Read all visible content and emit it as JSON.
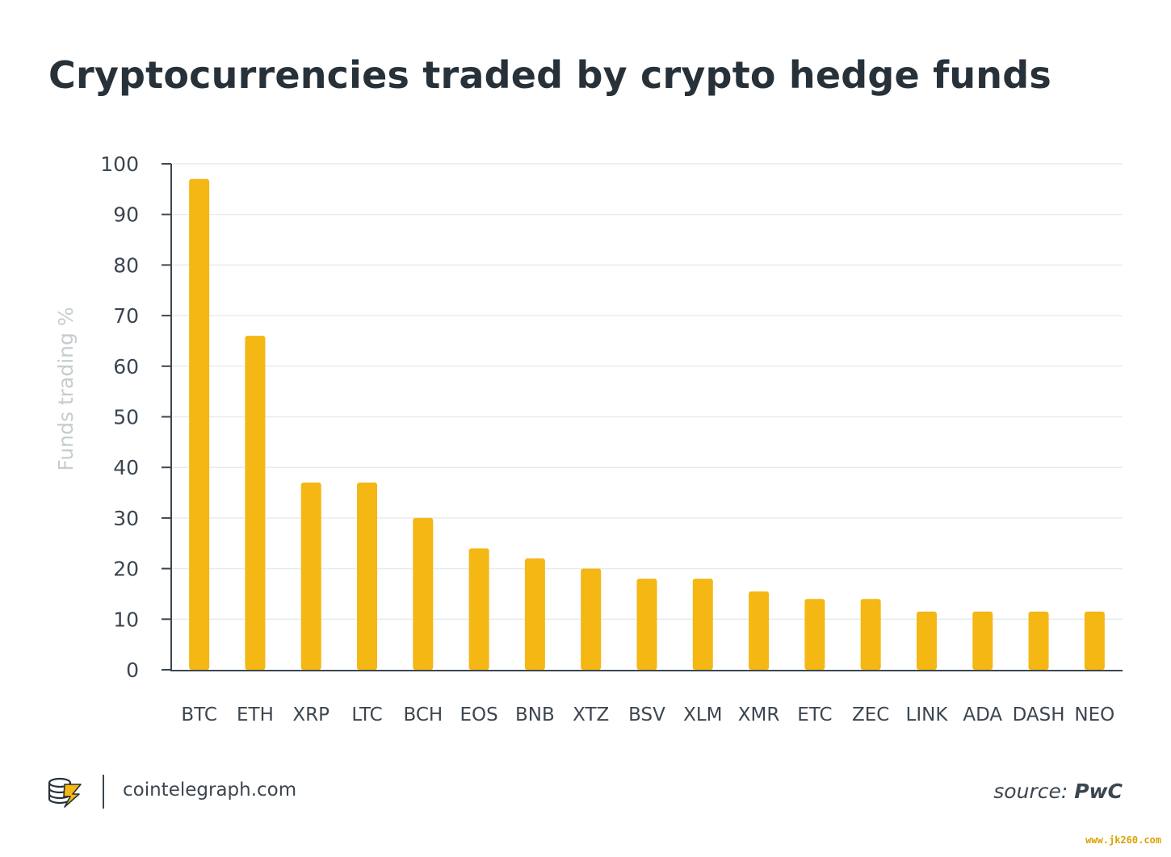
{
  "chart_data": {
    "type": "bar",
    "title": "Cryptocurrencies traded by crypto hedge funds",
    "ylabel": "Funds trading %",
    "xlabel": "",
    "ylim": [
      0,
      100
    ],
    "yticks": [
      0,
      10,
      20,
      30,
      40,
      50,
      60,
      70,
      80,
      90,
      100
    ],
    "grid": true,
    "bar_color": "#f4b713",
    "categories": [
      "BTC",
      "ETH",
      "XRP",
      "LTC",
      "BCH",
      "EOS",
      "BNB",
      "XTZ",
      "BSV",
      "XLM",
      "XMR",
      "ETC",
      "ZEC",
      "LINK",
      "ADA",
      "DASH",
      "NEO"
    ],
    "values": [
      97,
      66,
      37,
      37,
      30,
      24,
      22,
      20,
      18,
      18,
      15.5,
      14,
      14,
      11.5,
      11.5,
      11.5,
      11.5
    ]
  },
  "footer": {
    "site": "cointelegraph.com",
    "source_prefix": "source:",
    "source_name": "PwC",
    "logo_icon": "cointelegraph-logo-icon"
  },
  "watermark": "www.jk260.com"
}
